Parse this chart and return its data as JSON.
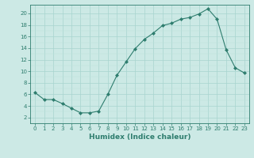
{
  "x": [
    0,
    1,
    2,
    3,
    4,
    5,
    6,
    7,
    8,
    9,
    10,
    11,
    12,
    13,
    14,
    15,
    16,
    17,
    18,
    19,
    20,
    21,
    22,
    23
  ],
  "y": [
    6.3,
    5.1,
    5.1,
    4.4,
    3.6,
    2.8,
    2.8,
    3.1,
    6.0,
    9.3,
    11.6,
    13.9,
    15.5,
    16.6,
    17.9,
    18.3,
    19.0,
    19.3,
    19.9,
    20.8,
    19.0,
    13.7,
    10.6,
    9.7
  ],
  "line_color": "#2e7d6e",
  "marker": "D",
  "marker_size": 2.0,
  "bg_color": "#cce9e5",
  "grid_major_color": "#a8d4cf",
  "grid_minor_color": "#bce0db",
  "xlabel": "Humidex (Indice chaleur)",
  "xlim": [
    -0.5,
    23.5
  ],
  "ylim": [
    1,
    21.5
  ],
  "yticks": [
    2,
    4,
    6,
    8,
    10,
    12,
    14,
    16,
    18,
    20
  ],
  "xticks": [
    0,
    1,
    2,
    3,
    4,
    5,
    6,
    7,
    8,
    9,
    10,
    11,
    12,
    13,
    14,
    15,
    16,
    17,
    18,
    19,
    20,
    21,
    22,
    23
  ],
  "tick_color": "#2e7d6e",
  "label_color": "#2e7d6e",
  "tick_fontsize": 5.0,
  "xlabel_fontsize": 6.5
}
